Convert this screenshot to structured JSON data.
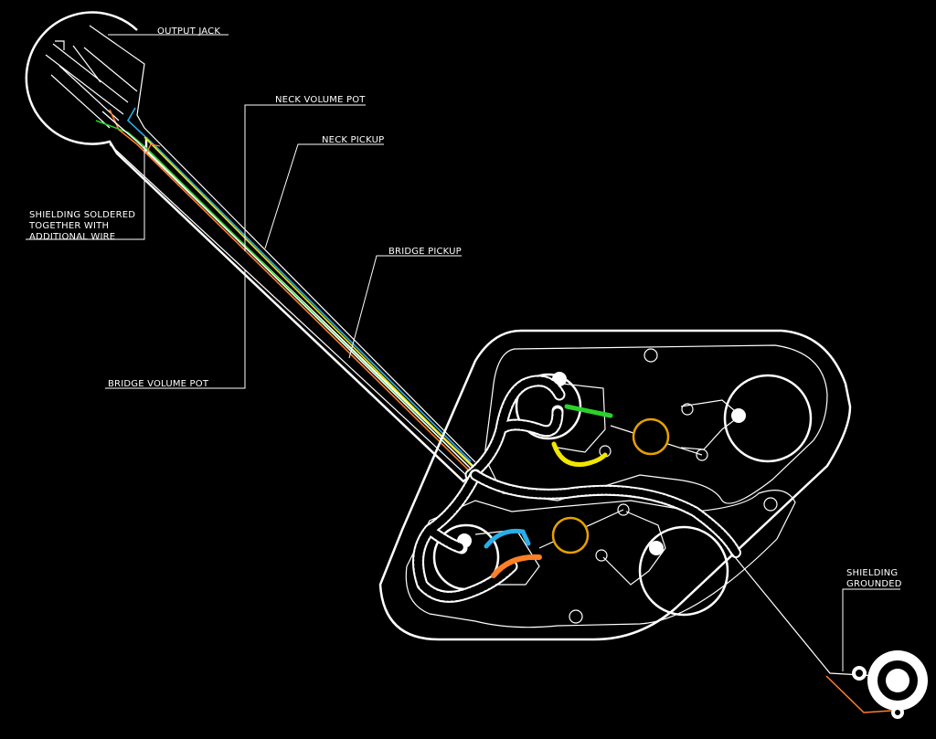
{
  "labels": {
    "output_jack": "OUTPUT JACK",
    "neck_volume_pot": "NECK VOLUME POT",
    "neck_pickup": "NECK PICKUP",
    "shielding_line1": "SHIELDING SOLDERED",
    "shielding_line2": "TOGETHER WITH",
    "shielding_line3": "ADDITIONAL WIRE",
    "bridge_pickup": "BRIDGE PICKUP",
    "bridge_volume_pot": "BRIDGE VOLUME POT",
    "grounded_line1": "SHIELDING",
    "grounded_line2": "GROUNDED"
  },
  "colors": {
    "background": "#000000",
    "outline": "#ffffff",
    "neck_pickup_wire": "#f2e600",
    "bridge_pickup_wire": "#ff7f27",
    "blue_wire": "#29aee8",
    "green_wire": "#2bd12b",
    "pot_ring": "#e6a100"
  }
}
